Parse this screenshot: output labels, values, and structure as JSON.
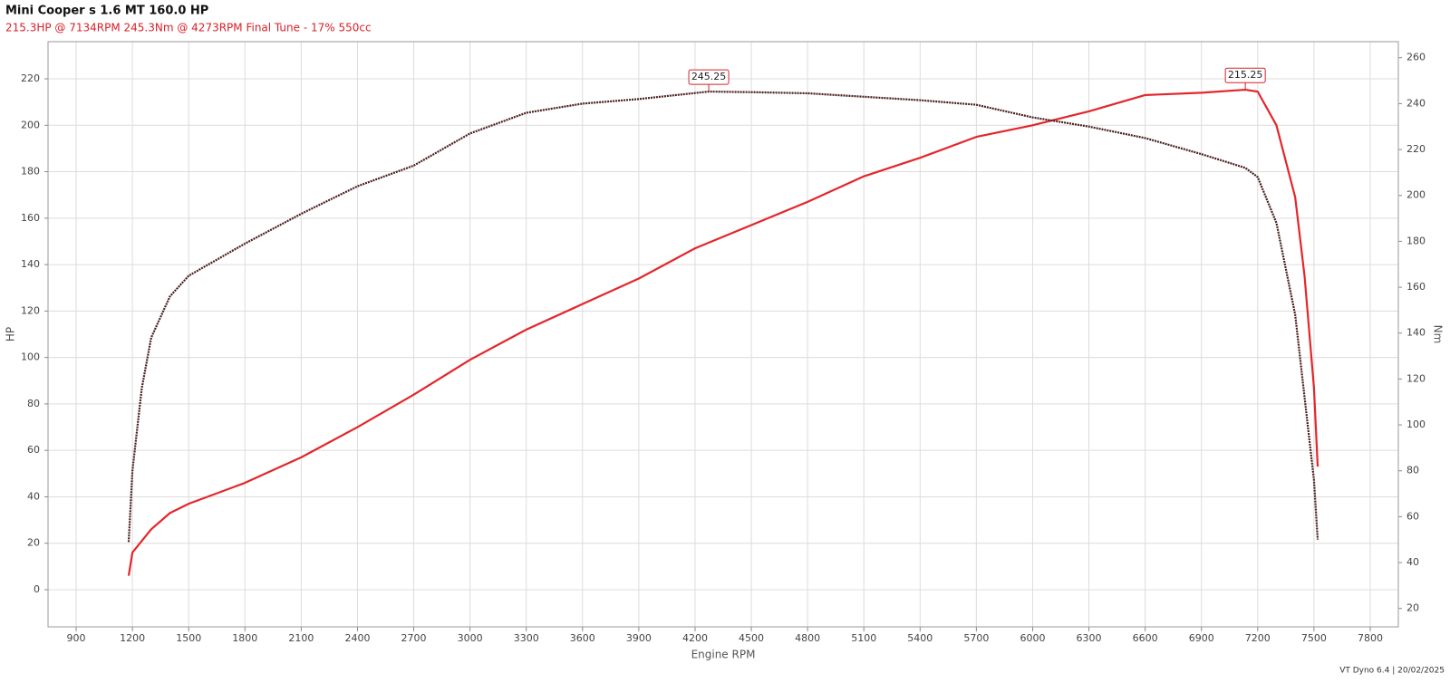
{
  "chart_data": {
    "type": "line",
    "title": "Mini Cooper s 1.6 MT 160.0 HP",
    "subtitle": "215.3HP @ 7134RPM 245.3Nm @ 4273RPM  Final Tune - 17% 550cc",
    "x_label": "Engine RPM",
    "y_label": "HP",
    "y2_label": "Nm",
    "footer": "VT Dyno 6.4 | 20/02/2025",
    "grid": true,
    "xlim": [
      750,
      7950
    ],
    "xticks": [
      900,
      1200,
      1500,
      1800,
      2100,
      2400,
      2700,
      3000,
      3300,
      3600,
      3900,
      4200,
      4500,
      4800,
      5100,
      5400,
      5700,
      6000,
      6300,
      6600,
      6900,
      7200,
      7500,
      7800
    ],
    "ylim": [
      -16,
      236
    ],
    "yticks": [
      0,
      20,
      40,
      60,
      80,
      100,
      120,
      140,
      160,
      180,
      200,
      220
    ],
    "y2lim": [
      12,
      267
    ],
    "y2ticks": [
      20,
      40,
      60,
      80,
      100,
      120,
      140,
      160,
      180,
      200,
      220,
      240,
      260
    ],
    "series": [
      {
        "name": "HP",
        "color": "#e3262b",
        "axis": "y",
        "x": [
          1180,
          1200,
          1300,
          1400,
          1500,
          1800,
          2100,
          2400,
          2700,
          3000,
          3300,
          3600,
          3900,
          4200,
          4500,
          4800,
          5100,
          5400,
          5700,
          6000,
          6300,
          6600,
          6900,
          7134,
          7200,
          7300,
          7400,
          7450,
          7500,
          7520
        ],
        "values": [
          6,
          16,
          26,
          33,
          37,
          46,
          57,
          70,
          84,
          99,
          112,
          123,
          134,
          147,
          157,
          167,
          178,
          186,
          195,
          200,
          206,
          213,
          214,
          215.3,
          214.5,
          200,
          169,
          135,
          87,
          53
        ]
      },
      {
        "name": "Nm",
        "color": "#4a1c1c",
        "axis": "y2",
        "x": [
          1180,
          1200,
          1250,
          1300,
          1400,
          1500,
          1800,
          2100,
          2400,
          2700,
          3000,
          3300,
          3600,
          3900,
          4273,
          4500,
          4800,
          5100,
          5400,
          5700,
          6000,
          6300,
          6600,
          6900,
          7134,
          7200,
          7300,
          7400,
          7450,
          7500,
          7520
        ],
        "values": [
          49,
          80,
          116,
          138,
          156,
          165,
          179,
          192,
          204,
          213,
          227,
          236,
          240,
          242,
          245.25,
          245,
          244.5,
          243,
          241.5,
          239.5,
          234,
          230,
          225,
          218,
          212,
          208,
          188,
          148,
          112,
          76,
          50
        ]
      }
    ],
    "annotations": [
      {
        "x": 4273,
        "value": 245.25,
        "axis": "y2"
      },
      {
        "x": 7134,
        "value": 215.25,
        "axis": "y"
      }
    ]
  }
}
